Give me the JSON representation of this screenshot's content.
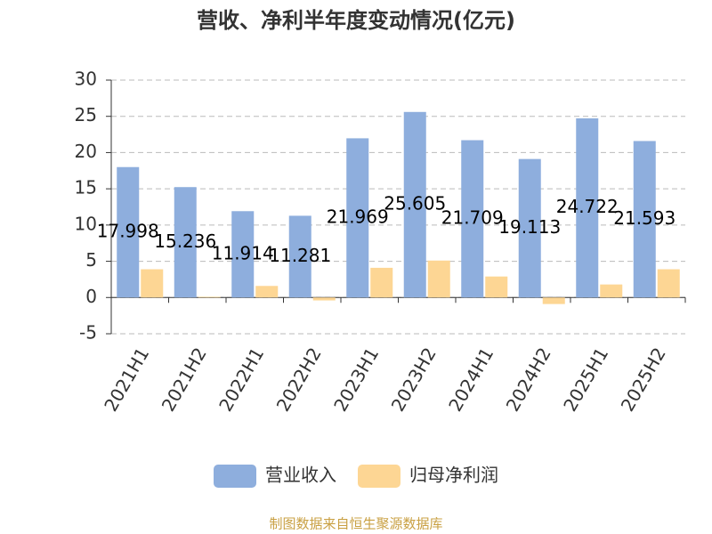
{
  "chart_data": {
    "type": "bar",
    "title": "营收、净利半年度变动情况(亿元)",
    "categories": [
      "2021H1",
      "2021H2",
      "2022H1",
      "2022H2",
      "2023H1",
      "2023H2",
      "2024H1",
      "2024H2",
      "2025H1",
      "2025H2"
    ],
    "series": [
      {
        "name": "营业收入",
        "color": "#8eaedd",
        "values": [
          17.998,
          15.236,
          11.914,
          11.281,
          21.969,
          25.605,
          21.709,
          19.113,
          24.722,
          21.593
        ],
        "show_labels": true
      },
      {
        "name": "归母净利润",
        "color": "#fdd694",
        "values": [
          3.9,
          0.1,
          1.6,
          -0.4,
          4.1,
          5.1,
          2.9,
          -0.9,
          1.8,
          3.9
        ],
        "show_labels": false
      }
    ],
    "ylim": [
      -5,
      30
    ],
    "yticks": [
      -5,
      0,
      5,
      10,
      15,
      20,
      25,
      30
    ],
    "grid": true,
    "legend": "bottom",
    "source": "制图数据来自恒生聚源数据库"
  }
}
